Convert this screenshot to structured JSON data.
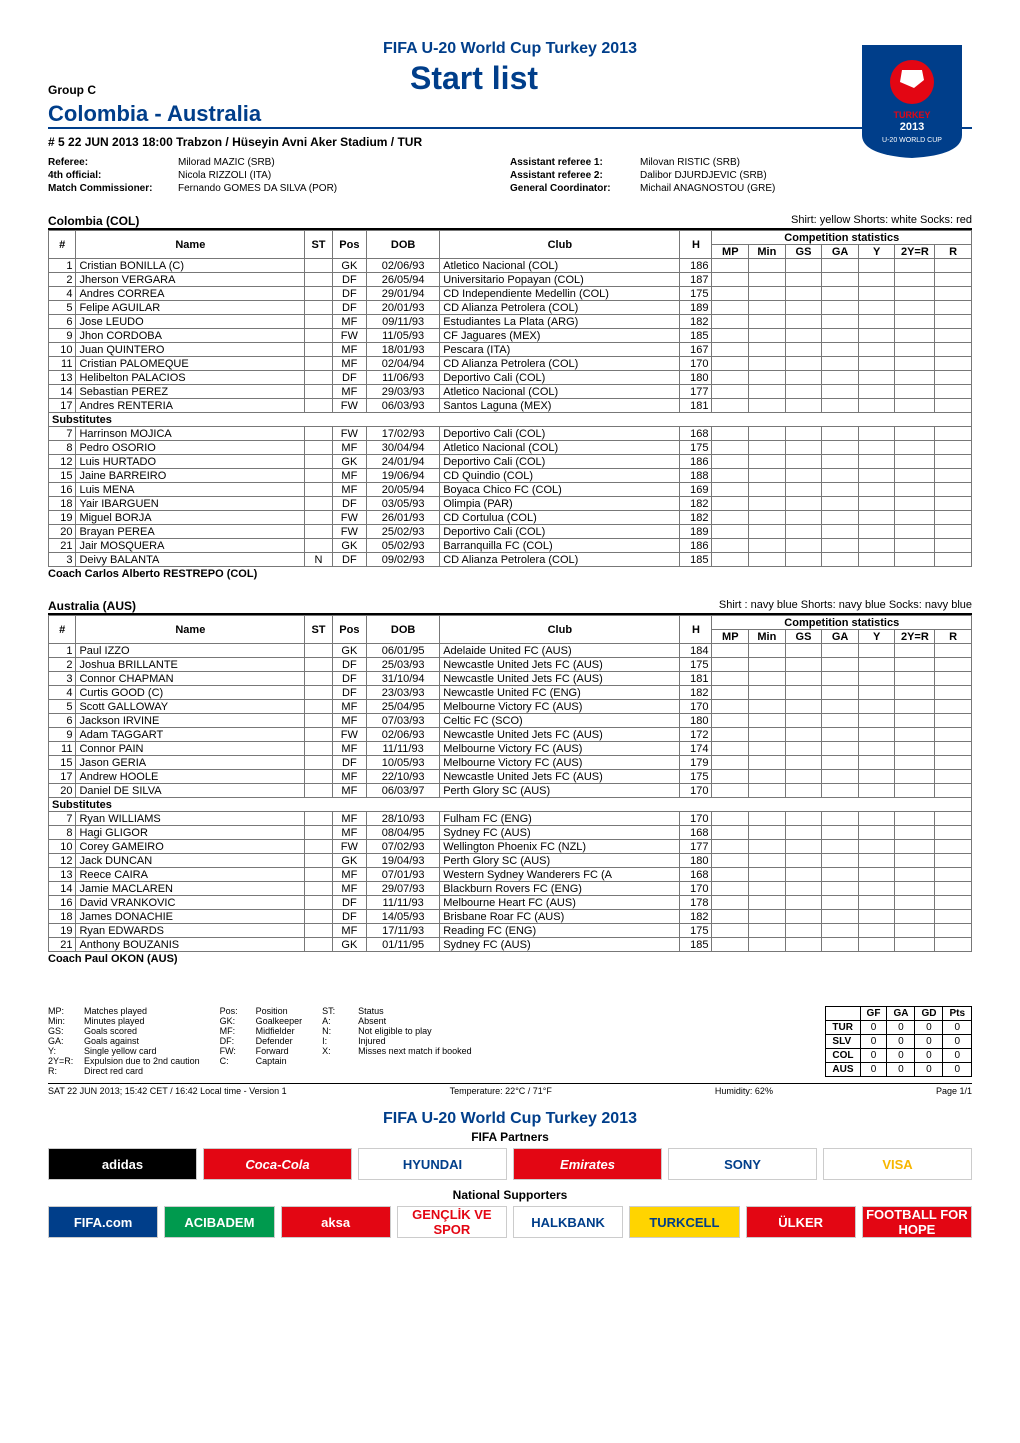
{
  "event_title": "FIFA U-20 World Cup Turkey 2013",
  "page_title": "Start list",
  "group_label": "Group C",
  "teams_title": "Colombia  -  Australia",
  "match_line": "# 5    22 JUN 2013    18:00    Trabzon / Hüseyin Avni Aker Stadium /  TUR",
  "officials_left": [
    {
      "label": "Referee:",
      "value": "Milorad MAZIC (SRB)"
    },
    {
      "label": "4th official:",
      "value": "Nicola RIZZOLI (ITA)"
    },
    {
      "label": "Match Commissioner:",
      "value": "Fernando GOMES DA SILVA (POR)"
    }
  ],
  "officials_right": [
    {
      "label": "Assistant referee 1:",
      "value": "Milovan RISTIC (SRB)"
    },
    {
      "label": "Assistant referee 2:",
      "value": "Dalibor DJURDJEVIC (SRB)"
    },
    {
      "label": "General Coordinator:",
      "value": "Michail ANAGNOSTOU (GRE)"
    }
  ],
  "table_headers": {
    "num": "#",
    "name": "Name",
    "st": "ST",
    "pos": "Pos",
    "dob": "DOB",
    "club": "Club",
    "h": "H",
    "comp_stats": "Competition statistics",
    "mp": "MP",
    "min": "Min",
    "gs": "GS",
    "ga": "GA",
    "y": "Y",
    "yr": "2Y=R",
    "r": "R"
  },
  "substitutes_label": "Substitutes",
  "coach_label": "Coach",
  "team1": {
    "name": "Colombia  (COL)",
    "kit": "Shirt: yellow   Shorts: white   Socks: red",
    "coach": "Carlos Alberto RESTREPO (COL)",
    "starters": [
      {
        "n": "1",
        "name": "Cristian BONILLA (C)",
        "st": "",
        "pos": "GK",
        "dob": "02/06/93",
        "club": "Atletico Nacional (COL)",
        "h": "186"
      },
      {
        "n": "2",
        "name": "Jherson VERGARA",
        "st": "",
        "pos": "DF",
        "dob": "26/05/94",
        "club": "Universitario Popayan (COL)",
        "h": "187"
      },
      {
        "n": "4",
        "name": "Andres CORREA",
        "st": "",
        "pos": "DF",
        "dob": "29/01/94",
        "club": "CD Independiente Medellin (COL)",
        "h": "175"
      },
      {
        "n": "5",
        "name": "Felipe AGUILAR",
        "st": "",
        "pos": "DF",
        "dob": "20/01/93",
        "club": "CD Alianza Petrolera (COL)",
        "h": "189"
      },
      {
        "n": "6",
        "name": "Jose LEUDO",
        "st": "",
        "pos": "MF",
        "dob": "09/11/93",
        "club": "Estudiantes La Plata (ARG)",
        "h": "182"
      },
      {
        "n": "9",
        "name": "Jhon CORDOBA",
        "st": "",
        "pos": "FW",
        "dob": "11/05/93",
        "club": "CF Jaguares (MEX)",
        "h": "185"
      },
      {
        "n": "10",
        "name": "Juan QUINTERO",
        "st": "",
        "pos": "MF",
        "dob": "18/01/93",
        "club": "Pescara (ITA)",
        "h": "167"
      },
      {
        "n": "11",
        "name": "Cristian PALOMEQUE",
        "st": "",
        "pos": "MF",
        "dob": "02/04/94",
        "club": "CD Alianza Petrolera (COL)",
        "h": "170"
      },
      {
        "n": "13",
        "name": "Helibelton PALACIOS",
        "st": "",
        "pos": "DF",
        "dob": "11/06/93",
        "club": "Deportivo Cali (COL)",
        "h": "180"
      },
      {
        "n": "14",
        "name": "Sebastian PEREZ",
        "st": "",
        "pos": "MF",
        "dob": "29/03/93",
        "club": "Atletico Nacional (COL)",
        "h": "177"
      },
      {
        "n": "17",
        "name": "Andres RENTERIA",
        "st": "",
        "pos": "FW",
        "dob": "06/03/93",
        "club": "Santos Laguna (MEX)",
        "h": "181"
      }
    ],
    "subs": [
      {
        "n": "7",
        "name": "Harrinson MOJICA",
        "st": "",
        "pos": "FW",
        "dob": "17/02/93",
        "club": "Deportivo Cali (COL)",
        "h": "168"
      },
      {
        "n": "8",
        "name": "Pedro OSORIO",
        "st": "",
        "pos": "MF",
        "dob": "30/04/94",
        "club": "Atletico Nacional (COL)",
        "h": "175"
      },
      {
        "n": "12",
        "name": "Luis HURTADO",
        "st": "",
        "pos": "GK",
        "dob": "24/01/94",
        "club": "Deportivo Cali (COL)",
        "h": "186"
      },
      {
        "n": "15",
        "name": "Jaine BARREIRO",
        "st": "",
        "pos": "MF",
        "dob": "19/06/94",
        "club": "CD Quindio (COL)",
        "h": "188"
      },
      {
        "n": "16",
        "name": "Luis MENA",
        "st": "",
        "pos": "MF",
        "dob": "20/05/94",
        "club": "Boyaca Chico FC (COL)",
        "h": "169"
      },
      {
        "n": "18",
        "name": "Yair IBARGUEN",
        "st": "",
        "pos": "DF",
        "dob": "03/05/93",
        "club": "Olimpia (PAR)",
        "h": "182"
      },
      {
        "n": "19",
        "name": "Miguel BORJA",
        "st": "",
        "pos": "FW",
        "dob": "26/01/93",
        "club": "CD Cortulua (COL)",
        "h": "182"
      },
      {
        "n": "20",
        "name": "Brayan PEREA",
        "st": "",
        "pos": "FW",
        "dob": "25/02/93",
        "club": "Deportivo Cali (COL)",
        "h": "189"
      },
      {
        "n": "21",
        "name": "Jair MOSQUERA",
        "st": "",
        "pos": "GK",
        "dob": "05/02/93",
        "club": "Barranquilla FC (COL)",
        "h": "186"
      },
      {
        "n": "3",
        "name": "Deivy BALANTA",
        "st": "N",
        "pos": "DF",
        "dob": "09/02/93",
        "club": "CD Alianza Petrolera (COL)",
        "h": "185"
      }
    ]
  },
  "team2": {
    "name": "Australia  (AUS)",
    "kit": "Shirt : navy blue   Shorts: navy blue   Socks: navy blue",
    "coach": "Paul OKON (AUS)",
    "starters": [
      {
        "n": "1",
        "name": "Paul IZZO",
        "st": "",
        "pos": "GK",
        "dob": "06/01/95",
        "club": "Adelaide United FC (AUS)",
        "h": "184"
      },
      {
        "n": "2",
        "name": "Joshua BRILLANTE",
        "st": "",
        "pos": "DF",
        "dob": "25/03/93",
        "club": "Newcastle United Jets FC (AUS)",
        "h": "175"
      },
      {
        "n": "3",
        "name": "Connor CHAPMAN",
        "st": "",
        "pos": "DF",
        "dob": "31/10/94",
        "club": "Newcastle United Jets FC (AUS)",
        "h": "181"
      },
      {
        "n": "4",
        "name": "Curtis GOOD (C)",
        "st": "",
        "pos": "DF",
        "dob": "23/03/93",
        "club": "Newcastle United FC (ENG)",
        "h": "182"
      },
      {
        "n": "5",
        "name": "Scott GALLOWAY",
        "st": "",
        "pos": "MF",
        "dob": "25/04/95",
        "club": "Melbourne Victory FC (AUS)",
        "h": "170"
      },
      {
        "n": "6",
        "name": "Jackson IRVINE",
        "st": "",
        "pos": "MF",
        "dob": "07/03/93",
        "club": "Celtic FC (SCO)",
        "h": "180"
      },
      {
        "n": "9",
        "name": "Adam TAGGART",
        "st": "",
        "pos": "FW",
        "dob": "02/06/93",
        "club": "Newcastle United Jets FC (AUS)",
        "h": "172"
      },
      {
        "n": "11",
        "name": "Connor PAIN",
        "st": "",
        "pos": "MF",
        "dob": "11/11/93",
        "club": "Melbourne Victory FC (AUS)",
        "h": "174"
      },
      {
        "n": "15",
        "name": "Jason GERIA",
        "st": "",
        "pos": "DF",
        "dob": "10/05/93",
        "club": "Melbourne Victory FC (AUS)",
        "h": "179"
      },
      {
        "n": "17",
        "name": "Andrew HOOLE",
        "st": "",
        "pos": "MF",
        "dob": "22/10/93",
        "club": "Newcastle United Jets FC (AUS)",
        "h": "175"
      },
      {
        "n": "20",
        "name": "Daniel DE SILVA",
        "st": "",
        "pos": "MF",
        "dob": "06/03/97",
        "club": "Perth Glory SC (AUS)",
        "h": "170"
      }
    ],
    "subs": [
      {
        "n": "7",
        "name": "Ryan WILLIAMS",
        "st": "",
        "pos": "MF",
        "dob": "28/10/93",
        "club": "Fulham FC (ENG)",
        "h": "170"
      },
      {
        "n": "8",
        "name": "Hagi GLIGOR",
        "st": "",
        "pos": "MF",
        "dob": "08/04/95",
        "club": "Sydney FC (AUS)",
        "h": "168"
      },
      {
        "n": "10",
        "name": "Corey GAMEIRO",
        "st": "",
        "pos": "FW",
        "dob": "07/02/93",
        "club": "Wellington Phoenix FC (NZL)",
        "h": "177"
      },
      {
        "n": "12",
        "name": "Jack DUNCAN",
        "st": "",
        "pos": "GK",
        "dob": "19/04/93",
        "club": "Perth Glory SC (AUS)",
        "h": "180"
      },
      {
        "n": "13",
        "name": "Reece CAIRA",
        "st": "",
        "pos": "MF",
        "dob": "07/01/93",
        "club": "Western Sydney Wanderers FC (A",
        "h": "168"
      },
      {
        "n": "14",
        "name": "Jamie MACLAREN",
        "st": "",
        "pos": "MF",
        "dob": "29/07/93",
        "club": "Blackburn Rovers FC (ENG)",
        "h": "170"
      },
      {
        "n": "16",
        "name": "David VRANKOVIC",
        "st": "",
        "pos": "DF",
        "dob": "11/11/93",
        "club": "Melbourne Heart FC (AUS)",
        "h": "178"
      },
      {
        "n": "18",
        "name": "James DONACHIE",
        "st": "",
        "pos": "DF",
        "dob": "14/05/93",
        "club": "Brisbane Roar FC (AUS)",
        "h": "182"
      },
      {
        "n": "19",
        "name": "Ryan EDWARDS",
        "st": "",
        "pos": "MF",
        "dob": "17/11/93",
        "club": "Reading FC (ENG)",
        "h": "175"
      },
      {
        "n": "21",
        "name": "Anthony BOUZANIS",
        "st": "",
        "pos": "GK",
        "dob": "01/11/95",
        "club": "Sydney FC (AUS)",
        "h": "185"
      }
    ]
  },
  "legend_cols": [
    [
      {
        "a": "MP:",
        "d": "Matches played"
      },
      {
        "a": "Min:",
        "d": "Minutes played"
      },
      {
        "a": "GS:",
        "d": "Goals scored"
      },
      {
        "a": "GA:",
        "d": "Goals against"
      },
      {
        "a": "Y:",
        "d": "Single yellow card"
      },
      {
        "a": "2Y=R:",
        "d": "Expulsion due to 2nd caution"
      },
      {
        "a": "R:",
        "d": "Direct red card"
      }
    ],
    [
      {
        "a": "Pos:",
        "d": "Position"
      },
      {
        "a": "GK:",
        "d": "Goalkeeper"
      },
      {
        "a": "MF:",
        "d": "Midfielder"
      },
      {
        "a": "DF:",
        "d": "Defender"
      },
      {
        "a": "FW:",
        "d": "Forward"
      },
      {
        "a": "C:",
        "d": "Captain"
      }
    ],
    [
      {
        "a": "ST:",
        "d": "Status"
      },
      {
        "a": "A:",
        "d": "Absent"
      },
      {
        "a": "N:",
        "d": "Not eligible to play"
      },
      {
        "a": "I:",
        "d": "Injured"
      },
      {
        "a": "X:",
        "d": "Misses next match if booked"
      }
    ]
  ],
  "standings": {
    "headers": [
      "",
      "GF",
      "GA",
      "GD",
      "Pts"
    ],
    "rows": [
      [
        "TUR",
        "0",
        "0",
        "0",
        "0"
      ],
      [
        "SLV",
        "0",
        "0",
        "0",
        "0"
      ],
      [
        "COL",
        "0",
        "0",
        "0",
        "0"
      ],
      [
        "AUS",
        "0",
        "0",
        "0",
        "0"
      ]
    ]
  },
  "footer": {
    "left": "SAT 22 JUN 2013;  15:42 CET /  16:42  Local time  -  Version  1",
    "temp": "Temperature: 22°C / 71°F",
    "humid": "Humidity: 62%",
    "page": "Page 1/1"
  },
  "sponsors": {
    "title": "FIFA U-20 World Cup Turkey 2013",
    "partners_label": "FIFA Partners",
    "partners": [
      {
        "t": "adidas",
        "bg": "#000000",
        "fg": "#ffffff"
      },
      {
        "t": "Coca-Cola",
        "bg": "#e30613",
        "fg": "#ffffff"
      },
      {
        "t": "HYUNDAI",
        "bg": "#ffffff",
        "fg": "#003e8a"
      },
      {
        "t": "Emirates",
        "bg": "#e30613",
        "fg": "#ffffff"
      },
      {
        "t": "SONY",
        "bg": "#ffffff",
        "fg": "#003e8a"
      },
      {
        "t": "VISA",
        "bg": "#ffffff",
        "fg": "#f7b600"
      }
    ],
    "national_label": "National Supporters",
    "national": [
      {
        "t": "FIFA.com",
        "bg": "#003e8a",
        "fg": "#ffffff"
      },
      {
        "t": "ACIBADEM",
        "bg": "#009a4e",
        "fg": "#ffffff"
      },
      {
        "t": "aksa",
        "bg": "#e30613",
        "fg": "#ffffff"
      },
      {
        "t": "GENÇLİK VE SPOR",
        "bg": "#ffffff",
        "fg": "#e30613"
      },
      {
        "t": "HALKBANK",
        "bg": "#ffffff",
        "fg": "#003e8a"
      },
      {
        "t": "TURKCELL",
        "bg": "#ffd400",
        "fg": "#003e8a"
      },
      {
        "t": "ÜLKER",
        "bg": "#e30613",
        "fg": "#ffffff"
      },
      {
        "t": "FOOTBALL FOR HOPE",
        "bg": "#e30613",
        "fg": "#ffffff"
      }
    ]
  },
  "logo": {
    "bg": "#003e8a",
    "text": "TURKEY 2013",
    "sub": "U-20 WORLD CUP"
  }
}
